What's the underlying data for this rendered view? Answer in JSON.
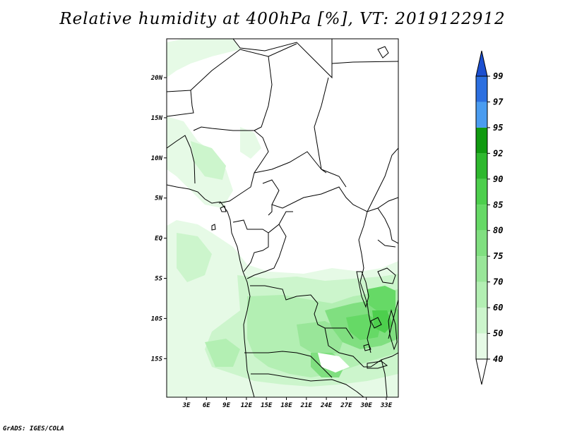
{
  "title": "Relative humidity at 400hPa [%], VT: 2019122912",
  "credit": "GrADS: IGES/COLA",
  "map": {
    "lat_ticks": [
      "20N",
      "15N",
      "10N",
      "5N",
      "EQ",
      "5S",
      "10S",
      "15S"
    ],
    "lon_ticks": [
      "3E",
      "6E",
      "9E",
      "12E",
      "15E",
      "18E",
      "21E",
      "24E",
      "27E",
      "30E",
      "33E"
    ]
  },
  "colorbar": {
    "levels": [
      "40",
      "50",
      "60",
      "70",
      "75",
      "80",
      "85",
      "90",
      "92",
      "95",
      "97",
      "99"
    ],
    "colors": [
      "#ffffff",
      "#e6fae6",
      "#ccf5cc",
      "#b3efb3",
      "#99e699",
      "#80df80",
      "#66d966",
      "#4dcf4d",
      "#2eb82e",
      "#109a10",
      "#4a9cf0",
      "#2c6fe0",
      "#1c4fd0"
    ]
  }
}
